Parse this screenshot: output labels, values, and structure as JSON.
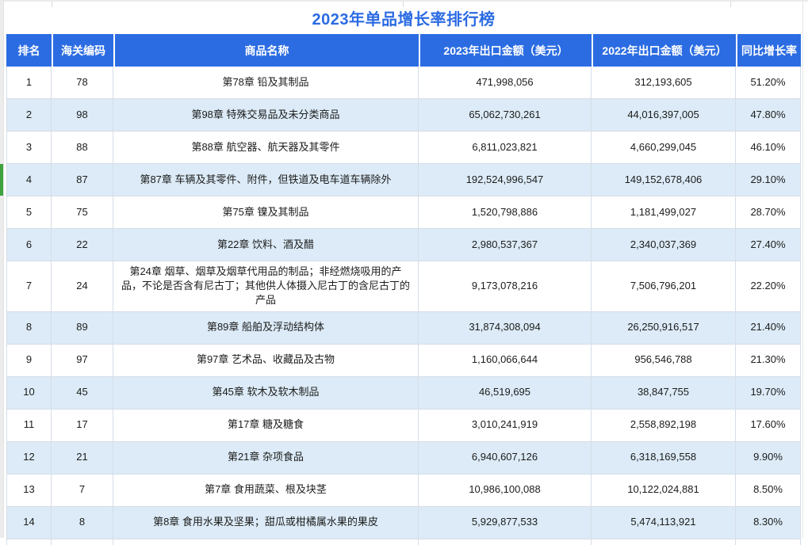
{
  "title": "2023年单品增长率排行榜",
  "table": {
    "columns": [
      "排名",
      "海关编码",
      "商品名称",
      "2023年出口金额（美元）",
      "2022年出口金额（美元）",
      "同比增长率"
    ],
    "rows": [
      {
        "rank": "1",
        "hs_code": "78",
        "name": "第78章 铅及其制品",
        "export_2023": "471,998,056",
        "export_2022": "312,193,605",
        "yoy_growth": "51.20%"
      },
      {
        "rank": "2",
        "hs_code": "98",
        "name": "第98章 特殊交易品及未分类商品",
        "export_2023": "65,062,730,261",
        "export_2022": "44,016,397,005",
        "yoy_growth": "47.80%"
      },
      {
        "rank": "3",
        "hs_code": "88",
        "name": "第88章 航空器、航天器及其零件",
        "export_2023": "6,811,023,821",
        "export_2022": "4,660,299,045",
        "yoy_growth": "46.10%"
      },
      {
        "rank": "4",
        "hs_code": "87",
        "name": "第87章 车辆及其零件、附件，但铁道及电车道车辆除外",
        "export_2023": "192,524,996,547",
        "export_2022": "149,152,678,406",
        "yoy_growth": "29.10%"
      },
      {
        "rank": "5",
        "hs_code": "75",
        "name": "第75章 镍及其制品",
        "export_2023": "1,520,798,886",
        "export_2022": "1,181,499,027",
        "yoy_growth": "28.70%"
      },
      {
        "rank": "6",
        "hs_code": "22",
        "name": "第22章 饮料、酒及醋",
        "export_2023": "2,980,537,367",
        "export_2022": "2,340,037,369",
        "yoy_growth": "27.40%"
      },
      {
        "rank": "7",
        "hs_code": "24",
        "name": "第24章 烟草、烟草及烟草代用品的制品；非经燃烧吸用的产品，不论是否含有尼古丁；其他供人体摄入尼古丁的含尼古丁的产品",
        "export_2023": "9,173,078,216",
        "export_2022": "7,506,796,201",
        "yoy_growth": "22.20%"
      },
      {
        "rank": "8",
        "hs_code": "89",
        "name": "第89章 船舶及浮动结构体",
        "export_2023": "31,874,308,094",
        "export_2022": "26,250,916,517",
        "yoy_growth": "21.40%"
      },
      {
        "rank": "9",
        "hs_code": "97",
        "name": "第97章 艺术品、收藏品及古物",
        "export_2023": "1,160,066,644",
        "export_2022": "956,546,788",
        "yoy_growth": "21.30%"
      },
      {
        "rank": "10",
        "hs_code": "45",
        "name": "第45章 软木及软木制品",
        "export_2023": "46,519,695",
        "export_2022": "38,847,755",
        "yoy_growth": "19.70%"
      },
      {
        "rank": "11",
        "hs_code": "17",
        "name": "第17章 糖及糖食",
        "export_2023": "3,010,241,919",
        "export_2022": "2,558,892,198",
        "yoy_growth": "17.60%"
      },
      {
        "rank": "12",
        "hs_code": "21",
        "name": "第21章 杂项食品",
        "export_2023": "6,940,607,126",
        "export_2022": "6,318,169,558",
        "yoy_growth": "9.90%"
      },
      {
        "rank": "13",
        "hs_code": "7",
        "name": "第7章 食用蔬菜、根及块茎",
        "export_2023": "10,986,100,088",
        "export_2022": "10,122,024,881",
        "yoy_growth": "8.50%"
      },
      {
        "rank": "14",
        "hs_code": "8",
        "name": "第8章 食用水果及坚果；甜瓜或柑橘属水果的果皮",
        "export_2023": "5,929,877,533",
        "export_2022": "5,474,113,921",
        "yoy_growth": "8.30%"
      }
    ],
    "marked_row_rank": "4"
  },
  "colors": {
    "header_bg": "#2b6ce2",
    "header_text": "#ffffff",
    "title_text": "#2b6be3",
    "alt_row_bg": "#dcebf7",
    "row_marker": "#3fa23f",
    "border": "#d6dde8"
  }
}
